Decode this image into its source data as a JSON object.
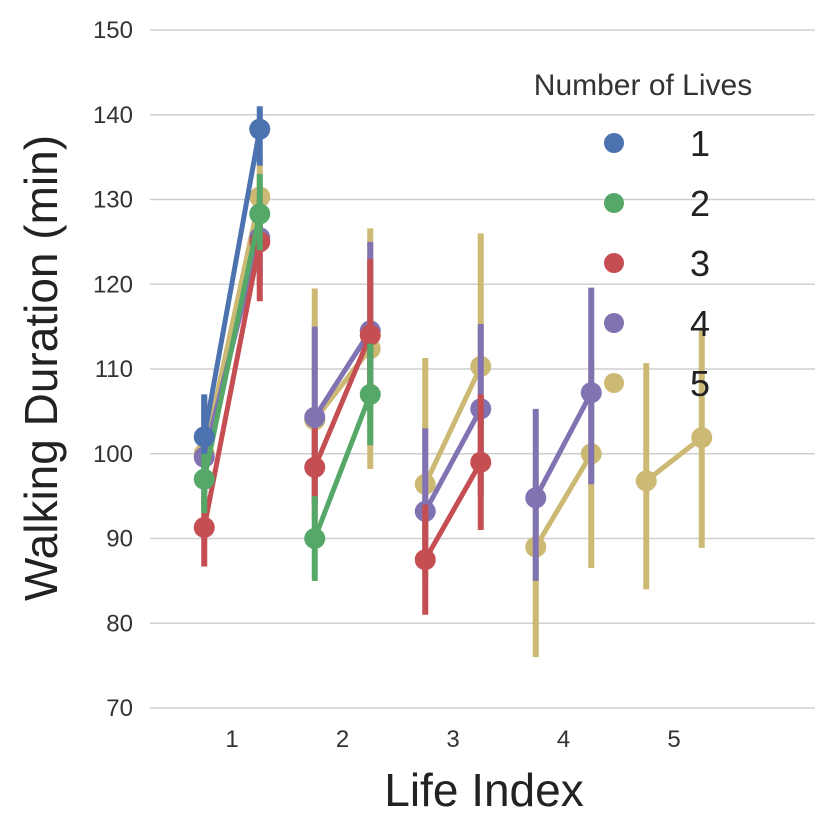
{
  "chart_data": {
    "type": "pointplot",
    "xlabel": "Life Index",
    "ylabel": "Walking Duration (min)",
    "ylim": [
      70,
      150
    ],
    "yticks": [
      70,
      80,
      90,
      100,
      110,
      120,
      130,
      140,
      150
    ],
    "grid": true,
    "categories": [
      "1",
      "2",
      "3",
      "4",
      "5"
    ],
    "legend": {
      "title": "Number of Lives",
      "placement": "top-right"
    },
    "series": [
      {
        "name": "1",
        "color": "#4c72b0",
        "points": [
          {
            "lives": 1,
            "mean": 102,
            "ci": [
              100,
              107
            ]
          },
          {
            "lives": 2,
            "mean": 138.3,
            "ci": [
              134,
              141
            ]
          }
        ]
      },
      {
        "name": "2",
        "color": "#55a868",
        "points": [
          {
            "lives": 1,
            "mean": 97,
            "ci": [
              93,
              101
            ]
          },
          {
            "lives": 2,
            "mean": 128.3,
            "ci": [
              124,
              133
            ]
          },
          {
            "lives": 3,
            "mean": 90,
            "ci": [
              85,
              95
            ]
          },
          {
            "lives": 4,
            "mean": 107,
            "ci": [
              101,
              113
            ]
          }
        ]
      },
      {
        "name": "3",
        "color": "#c44e52",
        "points": [
          {
            "lives": 1,
            "mean": 91.3,
            "ci": [
              86.7,
              95
            ]
          },
          {
            "lives": 2,
            "mean": 125,
            "ci": [
              118,
              130
            ]
          },
          {
            "lives": 3,
            "mean": 98.4,
            "ci": [
              94,
              103
            ]
          },
          {
            "lives": 4,
            "mean": 114,
            "ci": [
              105,
              123
            ]
          },
          {
            "lives": 5,
            "mean": 87.5,
            "ci": [
              81,
              94
            ]
          },
          {
            "lives": 6,
            "mean": 99,
            "ci": [
              91,
              107
            ]
          }
        ]
      },
      {
        "name": "4",
        "color": "#8172b2",
        "points": [
          {
            "lives": 1,
            "mean": 99.6,
            "ci": [
              94,
              106.7
            ]
          },
          {
            "lives": 2,
            "mean": 125.5,
            "ci": [
              120,
              130
            ]
          },
          {
            "lives": 3,
            "mean": 104.3,
            "ci": [
              94,
              115
            ]
          },
          {
            "lives": 4,
            "mean": 114.5,
            "ci": [
              106,
              125
            ]
          },
          {
            "lives": 5,
            "mean": 93.2,
            "ci": [
              88,
              103
            ]
          },
          {
            "lives": 6,
            "mean": 105.3,
            "ci": [
              95,
              115.3
            ]
          },
          {
            "lives": 7,
            "mean": 94.8,
            "ci": [
              85,
              105.3
            ]
          },
          {
            "lives": 8,
            "mean": 107.2,
            "ci": [
              96.4,
              119.6
            ]
          }
        ]
      },
      {
        "name": "5",
        "color": "#ccb974",
        "points": [
          {
            "lives": 1,
            "mean": 100,
            "ci": [
              95,
              105
            ]
          },
          {
            "lives": 2,
            "mean": 130.3,
            "ci": [
              126,
              135
            ]
          },
          {
            "lives": 3,
            "mean": 104,
            "ci": [
              92,
              119.5
            ]
          },
          {
            "lives": 4,
            "mean": 112.4,
            "ci": [
              98.2,
              126.6
            ]
          },
          {
            "lives": 5,
            "mean": 96.4,
            "ci": [
              85,
              111.3
            ]
          },
          {
            "lives": 6,
            "mean": 110.3,
            "ci": [
              98,
              126
            ]
          },
          {
            "lives": 7,
            "mean": 89,
            "ci": [
              76,
              97
            ]
          },
          {
            "lives": 8,
            "mean": 100,
            "ci": [
              86.5,
              111
            ]
          },
          {
            "lives": 9,
            "mean": 96.8,
            "ci": [
              84,
              110.7
            ]
          },
          {
            "lives": 10,
            "mean": 101.9,
            "ci": [
              88.9,
              114.9
            ]
          }
        ]
      }
    ]
  }
}
